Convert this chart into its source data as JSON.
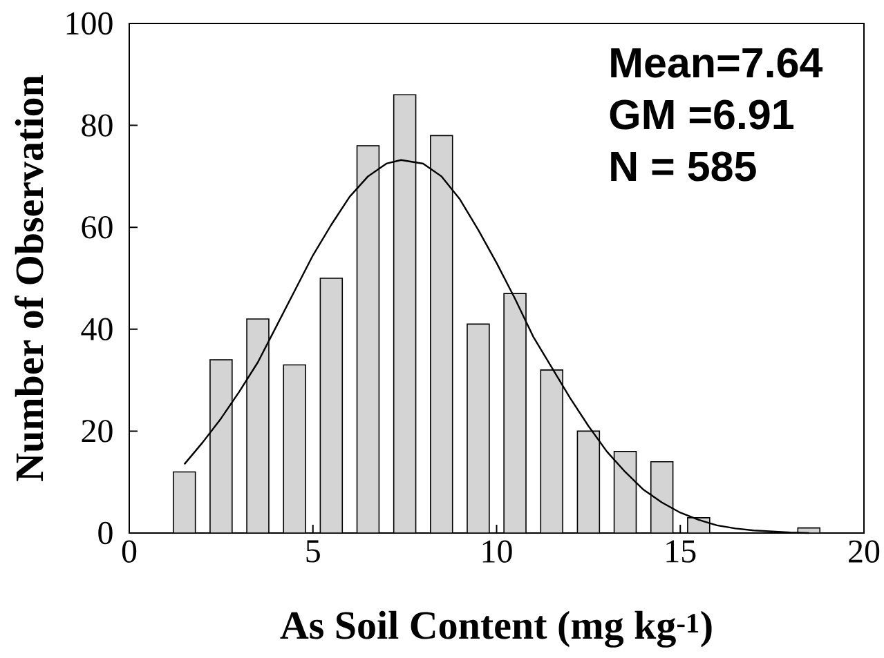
{
  "chart_data": {
    "type": "bar",
    "xlabel": "As Soil Content (mg kg$^{-1}$)",
    "ylabel": "Number of Observation",
    "annotations": [
      "Mean=7.64",
      "GM =6.91",
      "N = 585"
    ],
    "xlim": [
      0,
      20
    ],
    "ylim": [
      0,
      100
    ],
    "xticks": [
      0,
      5,
      10,
      15,
      20
    ],
    "yticks": [
      0,
      20,
      40,
      60,
      80,
      100
    ],
    "series": [
      {
        "color": "#d4d4d4",
        "x": [
          1.5,
          2.5,
          3.5,
          4.5,
          5.5,
          6.5,
          7.5,
          8.5,
          9.5,
          10.5,
          11.5,
          12.5,
          13.5,
          14.5,
          15.5,
          18.5
        ],
        "values": [
          12,
          34,
          42,
          33,
          50,
          76,
          86,
          78,
          41,
          47,
          32,
          20,
          16,
          14,
          3,
          1
        ]
      },
      {
        "type": "line",
        "color": "#000000",
        "x": [
          1.5,
          2.0,
          2.5,
          3.0,
          3.5,
          4.0,
          4.5,
          5.0,
          5.5,
          6.0,
          6.5,
          7.0,
          7.4,
          8.0,
          8.5,
          9.0,
          9.5,
          10.0,
          10.5,
          11.0,
          11.5,
          12.0,
          12.5,
          13.0,
          13.5,
          14.0,
          14.5,
          15.0,
          15.5,
          16.0,
          16.5,
          17.0,
          17.5,
          18.0,
          18.5
        ],
        "values": [
          13.5,
          17.8,
          22.5,
          27.8,
          33.5,
          40.5,
          47.5,
          54.5,
          60.5,
          66,
          70,
          72.5,
          73.2,
          72.5,
          70,
          65.5,
          59.5,
          53,
          46,
          38.5,
          32.5,
          26.5,
          21,
          16,
          12,
          8.5,
          6,
          4,
          2.6,
          1.5,
          0.9,
          0.5,
          0.3,
          0.1,
          0
        ]
      }
    ]
  }
}
